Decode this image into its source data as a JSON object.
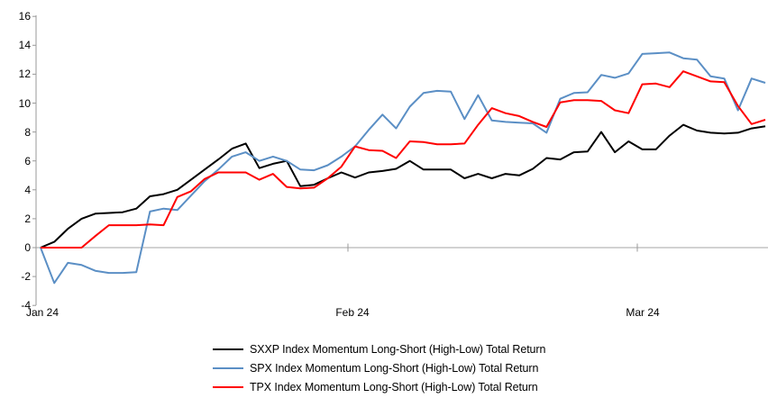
{
  "chart_data": {
    "type": "line",
    "title": "",
    "frequency": "daily",
    "x_labels": [
      "Jan 24",
      "Feb 24",
      "Mar 24"
    ],
    "y_ticks": [
      "16",
      "14",
      "12",
      "10",
      "8",
      "6",
      "4",
      "2",
      "0",
      "-2",
      "-4"
    ],
    "ylim": [
      -4,
      16
    ],
    "grid": false,
    "legend_position": "bottom-center",
    "axis_color": "#999999",
    "zero_line_color": "#a6a6a6",
    "series": [
      {
        "name": "SXXP Index Momentum Long-Short (High-Low) Total Return",
        "color": "#000000",
        "values": [
          0,
          0.4,
          1.3,
          2.0,
          2.35,
          2.4,
          2.45,
          2.7,
          3.55,
          3.7,
          4.0,
          4.7,
          5.4,
          6.1,
          6.85,
          7.2,
          5.5,
          5.8,
          6.0,
          4.25,
          4.35,
          4.8,
          5.2,
          4.85,
          5.2,
          5.3,
          5.45,
          6.0,
          5.4,
          5.4,
          5.4,
          4.8,
          5.1,
          4.8,
          5.1,
          5.0,
          5.45,
          6.2,
          6.1,
          6.6,
          6.65,
          8.0,
          6.6,
          7.35,
          6.8,
          6.8,
          7.75,
          8.5,
          8.1,
          7.95,
          7.9,
          7.95,
          8.25,
          8.4
        ]
      },
      {
        "name": "SPX Index Momentum Long-Short (High-Low) Total Return",
        "color": "#5B8FC5",
        "values": [
          0,
          -2.45,
          -1.05,
          -1.2,
          -1.6,
          -1.75,
          -1.75,
          -1.7,
          2.5,
          2.7,
          2.6,
          3.6,
          4.6,
          5.4,
          6.3,
          6.6,
          6.0,
          6.3,
          6.0,
          5.4,
          5.35,
          5.7,
          6.3,
          7.0,
          8.15,
          9.2,
          8.25,
          9.75,
          10.7,
          10.85,
          10.8,
          8.9,
          10.55,
          8.8,
          8.7,
          8.65,
          8.6,
          7.95,
          10.3,
          10.7,
          10.75,
          11.95,
          11.75,
          12.05,
          13.4,
          13.45,
          13.5,
          13.1,
          13.0,
          11.85,
          11.7,
          9.5,
          11.7,
          11.4
        ]
      },
      {
        "name": "TPX Index Momentum Long-Short (High-Low) Total Return",
        "color": "#FF0000",
        "values": [
          0,
          0,
          0,
          0,
          0.8,
          1.55,
          1.55,
          1.55,
          1.6,
          1.55,
          3.5,
          3.9,
          4.75,
          5.2,
          5.2,
          5.2,
          4.7,
          5.1,
          4.2,
          4.1,
          4.15,
          4.8,
          5.6,
          7.0,
          6.75,
          6.7,
          6.2,
          7.35,
          7.3,
          7.15,
          7.15,
          7.2,
          8.5,
          9.65,
          9.3,
          9.1,
          8.7,
          8.35,
          10.05,
          10.2,
          10.2,
          10.15,
          9.5,
          9.3,
          11.3,
          11.35,
          11.1,
          12.2,
          11.85,
          11.5,
          11.45,
          9.8,
          8.55,
          8.85
        ]
      }
    ]
  }
}
